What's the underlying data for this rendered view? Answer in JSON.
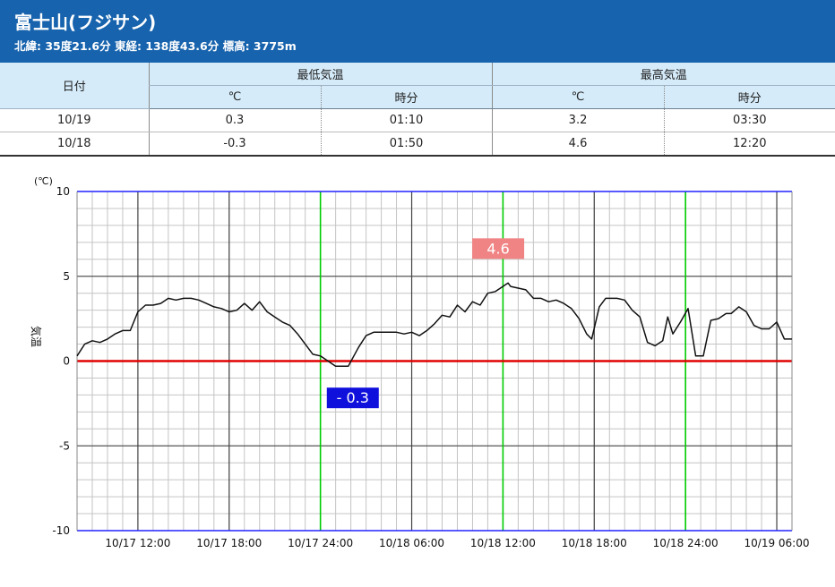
{
  "header": {
    "title": "富士山(フジサン)",
    "subtitle": "北緯: 35度21.6分 東経: 138度43.6分 標高: 3775m"
  },
  "table": {
    "date_header": "日付",
    "min_group": "最低気温",
    "max_group": "最高気温",
    "unit_c": "℃",
    "time_header": "時分",
    "rows": [
      {
        "date": "10/19",
        "min_c": "0.3",
        "min_time": "01:10",
        "max_c": "3.2",
        "max_time": "03:30"
      },
      {
        "date": "10/18",
        "min_c": "-0.3",
        "min_time": "01:50",
        "max_c": "4.6",
        "max_time": "12:20"
      }
    ]
  },
  "colors": {
    "header_bg": "#1763ad",
    "table_header_bg": "#d5ebf9",
    "zero_line": "#e00000",
    "midnight_line": "#00cc00",
    "frame": "#2222ff",
    "max_label_bg": "#f08484",
    "min_label_bg": "#1010dd"
  },
  "chart_data": {
    "type": "line",
    "yunit": "(℃)",
    "ylabel": "気温",
    "ylim": [
      -10,
      10
    ],
    "yticks": [
      {
        "value": 10,
        "label": "10"
      },
      {
        "value": 5,
        "label": "5"
      },
      {
        "value": 0,
        "label": "0"
      },
      {
        "value": -5,
        "label": "-5"
      },
      {
        "value": -10,
        "label": "-10"
      }
    ],
    "x_start": "10/17 08:00",
    "x_end": "10/19 07:00",
    "xticks": [
      {
        "x": "10/17 12:00",
        "label": "10/17 12:00",
        "major": true
      },
      {
        "x": "10/17 18:00",
        "label": "10/17 18:00",
        "major": true
      },
      {
        "x": "10/17 24:00",
        "label": "10/17 24:00",
        "major": true,
        "midnight": true
      },
      {
        "x": "10/18 06:00",
        "label": "10/18 06:00",
        "major": true
      },
      {
        "x": "10/18 12:00",
        "label": "10/18 12:00",
        "major": true,
        "midnight": true
      },
      {
        "x": "10/18 18:00",
        "label": "10/18 18:00",
        "major": true
      },
      {
        "x": "10/18 24:00",
        "label": "10/18 24:00",
        "major": true,
        "midnight": true
      },
      {
        "x": "10/19 06:00",
        "label": "10/19 06:00",
        "major": true
      }
    ],
    "series": [
      {
        "points": [
          [
            "10/17 08:00",
            0.3
          ],
          [
            "10/17 08:30",
            1.0
          ],
          [
            "10/17 09:00",
            1.2
          ],
          [
            "10/17 09:30",
            1.1
          ],
          [
            "10/17 10:00",
            1.3
          ],
          [
            "10/17 10:30",
            1.6
          ],
          [
            "10/17 11:00",
            1.8
          ],
          [
            "10/17 11:30",
            1.8
          ],
          [
            "10/17 12:00",
            2.9
          ],
          [
            "10/17 12:30",
            3.3
          ],
          [
            "10/17 13:00",
            3.3
          ],
          [
            "10/17 13:30",
            3.4
          ],
          [
            "10/17 14:00",
            3.7
          ],
          [
            "10/17 14:30",
            3.6
          ],
          [
            "10/17 15:00",
            3.7
          ],
          [
            "10/17 15:30",
            3.7
          ],
          [
            "10/17 16:00",
            3.6
          ],
          [
            "10/17 16:30",
            3.4
          ],
          [
            "10/17 17:00",
            3.2
          ],
          [
            "10/17 17:30",
            3.1
          ],
          [
            "10/17 18:00",
            2.9
          ],
          [
            "10/17 18:30",
            3.0
          ],
          [
            "10/17 19:00",
            3.4
          ],
          [
            "10/17 19:30",
            3.0
          ],
          [
            "10/17 20:00",
            3.5
          ],
          [
            "10/17 20:30",
            2.9
          ],
          [
            "10/17 21:00",
            2.6
          ],
          [
            "10/17 21:30",
            2.3
          ],
          [
            "10/17 22:00",
            2.1
          ],
          [
            "10/17 22:30",
            1.6
          ],
          [
            "10/17 23:00",
            1.0
          ],
          [
            "10/17 23:30",
            0.4
          ],
          [
            "10/18 00:00",
            0.3
          ],
          [
            "10/18 00:30",
            0.0
          ],
          [
            "10/18 01:00",
            -0.3
          ],
          [
            "10/18 01:30",
            -0.3
          ],
          [
            "10/18 01:50",
            -0.3
          ],
          [
            "10/18 02:30",
            0.8
          ],
          [
            "10/18 03:00",
            1.5
          ],
          [
            "10/18 03:30",
            1.7
          ],
          [
            "10/18 04:00",
            1.7
          ],
          [
            "10/18 05:00",
            1.7
          ],
          [
            "10/18 05:30",
            1.6
          ],
          [
            "10/18 06:00",
            1.7
          ],
          [
            "10/18 06:30",
            1.5
          ],
          [
            "10/18 07:00",
            1.8
          ],
          [
            "10/18 07:30",
            2.2
          ],
          [
            "10/18 08:00",
            2.7
          ],
          [
            "10/18 08:30",
            2.6
          ],
          [
            "10/18 09:00",
            3.3
          ],
          [
            "10/18 09:30",
            2.9
          ],
          [
            "10/18 10:00",
            3.5
          ],
          [
            "10/18 10:30",
            3.3
          ],
          [
            "10/18 11:00",
            4.0
          ],
          [
            "10/18 11:30",
            4.1
          ],
          [
            "10/18 12:20",
            4.6
          ],
          [
            "10/18 12:30",
            4.4
          ],
          [
            "10/18 13:00",
            4.3
          ],
          [
            "10/18 13:30",
            4.2
          ],
          [
            "10/18 14:00",
            3.7
          ],
          [
            "10/18 14:30",
            3.7
          ],
          [
            "10/18 15:00",
            3.5
          ],
          [
            "10/18 15:30",
            3.6
          ],
          [
            "10/18 16:00",
            3.4
          ],
          [
            "10/18 16:30",
            3.1
          ],
          [
            "10/18 17:00",
            2.5
          ],
          [
            "10/18 17:30",
            1.6
          ],
          [
            "10/18 17:50",
            1.3
          ],
          [
            "10/18 18:20",
            3.2
          ],
          [
            "10/18 18:45",
            3.7
          ],
          [
            "10/18 19:30",
            3.7
          ],
          [
            "10/18 20:00",
            3.6
          ],
          [
            "10/18 20:30",
            3.0
          ],
          [
            "10/18 21:00",
            2.6
          ],
          [
            "10/18 21:30",
            1.1
          ],
          [
            "10/18 22:00",
            0.9
          ],
          [
            "10/18 22:30",
            1.2
          ],
          [
            "10/18 22:50",
            2.6
          ],
          [
            "10/18 23:10",
            1.6
          ],
          [
            "10/18 23:40",
            2.3
          ],
          [
            "10/19 00:10",
            3.1
          ],
          [
            "10/19 00:40",
            0.3
          ],
          [
            "10/19 01:10",
            0.3
          ],
          [
            "10/19 01:40",
            2.4
          ],
          [
            "10/19 02:10",
            2.5
          ],
          [
            "10/19 02:40",
            2.8
          ],
          [
            "10/19 03:00",
            2.8
          ],
          [
            "10/19 03:30",
            3.2
          ],
          [
            "10/19 04:00",
            2.9
          ],
          [
            "10/19 04:30",
            2.1
          ],
          [
            "10/19 05:00",
            1.9
          ],
          [
            "10/19 05:30",
            1.9
          ],
          [
            "10/19 06:00",
            2.3
          ],
          [
            "10/19 06:30",
            1.3
          ],
          [
            "10/19 07:00",
            1.3
          ]
        ]
      }
    ],
    "annotations": [
      {
        "x": "10/18 12:20",
        "y": 4.6,
        "label": "4.6",
        "kind": "max"
      },
      {
        "x": "10/18 01:50",
        "y": -0.3,
        "label": "- 0.3",
        "kind": "min"
      }
    ]
  }
}
